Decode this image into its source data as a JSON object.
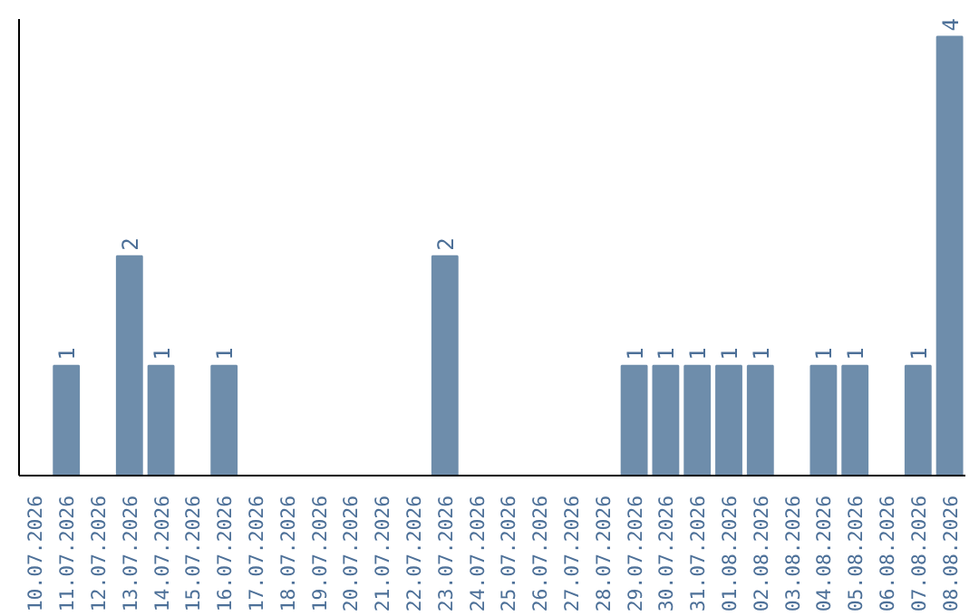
{
  "chart_data": {
    "type": "bar",
    "categories": [
      "10.07.2026",
      "11.07.2026",
      "12.07.2026",
      "13.07.2026",
      "14.07.2026",
      "15.07.2026",
      "16.07.2026",
      "17.07.2026",
      "18.07.2026",
      "19.07.2026",
      "20.07.2026",
      "21.07.2026",
      "22.07.2026",
      "23.07.2026",
      "24.07.2026",
      "25.07.2026",
      "26.07.2026",
      "27.07.2026",
      "28.07.2026",
      "29.07.2026",
      "30.07.2026",
      "31.07.2026",
      "01.08.2026",
      "02.08.2026",
      "03.08.2026",
      "04.08.2026",
      "05.08.2026",
      "06.08.2026",
      "07.08.2026",
      "08.08.2026"
    ],
    "values": [
      0,
      1,
      0,
      2,
      1,
      0,
      1,
      0,
      0,
      0,
      0,
      0,
      0,
      2,
      0,
      0,
      0,
      0,
      0,
      1,
      1,
      1,
      1,
      1,
      0,
      1,
      1,
      0,
      1,
      4
    ],
    "value_labels": [
      null,
      "1",
      null,
      "2",
      "1",
      null,
      "1",
      null,
      null,
      null,
      null,
      null,
      null,
      "2",
      null,
      null,
      null,
      null,
      null,
      "1",
      "1",
      "1",
      "1",
      "1",
      null,
      "1",
      "1",
      null,
      "1",
      "4"
    ],
    "color": "#6e8dab",
    "ylim": [
      0,
      4.16
    ],
    "tick_labels": "x",
    "grid": false
  }
}
